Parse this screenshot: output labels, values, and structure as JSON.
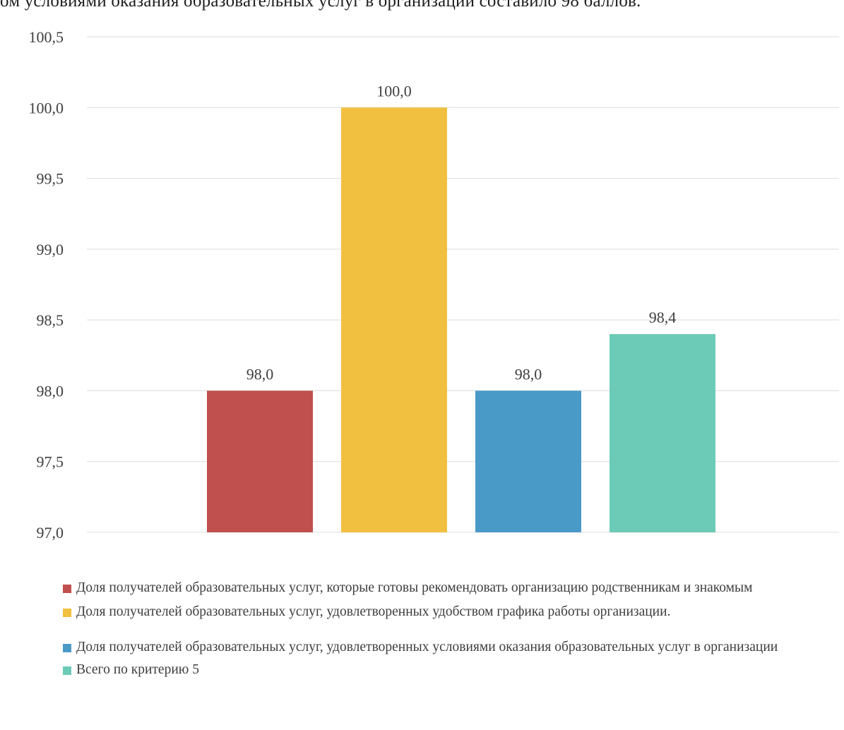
{
  "header": {
    "text": "ом условиями оказания образовательных услуг в организации составило 98 баллов."
  },
  "chart_data": {
    "type": "bar",
    "title": "",
    "xlabel": "",
    "ylabel": "",
    "ylim": [
      97.0,
      100.5
    ],
    "yticks": [
      "97,0",
      "97,5",
      "98,0",
      "98,5",
      "99,0",
      "99,5",
      "100,0",
      "100,5"
    ],
    "grid": true,
    "legend_position": "bottom",
    "series": [
      {
        "name": "Доля получателей образовательных услуг, которые готовы рекомендовать организацию родственникам и знакомым",
        "value": 98.0,
        "label": "98,0",
        "color": "#c0504d"
      },
      {
        "name": "Доля получателей образовательных услуг, удовлетворенных удобством графика работы организации.",
        "value": 100.0,
        "label": "100,0",
        "color": "#f2c040"
      },
      {
        "name": "Доля получателей образовательных услуг, удовлетворенных условиями оказания образовательных услуг в организации",
        "value": 98.0,
        "label": "98,0",
        "color": "#4a9ac7"
      },
      {
        "name": "Всего по критерию 5",
        "value": 98.4,
        "label": "98,4",
        "color": "#6ccbb6"
      }
    ]
  }
}
